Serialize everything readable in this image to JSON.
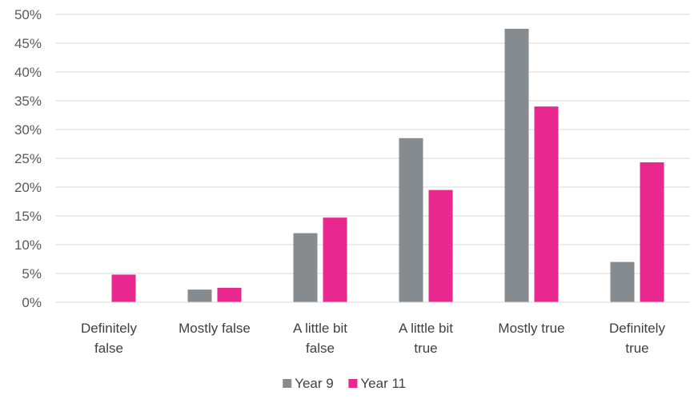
{
  "chart_data": {
    "type": "bar",
    "categories": [
      [
        "Definitely",
        "false"
      ],
      [
        "Mostly false"
      ],
      [
        "A little bit",
        "false"
      ],
      [
        "A little bit",
        "true"
      ],
      [
        "Mostly true"
      ],
      [
        "Definitely",
        "true"
      ]
    ],
    "series": [
      {
        "name": "Year 9",
        "color": "#868b90",
        "values": [
          0,
          2.2,
          12.0,
          28.5,
          47.5,
          7.0
        ]
      },
      {
        "name": "Year 11",
        "color": "#e8278f",
        "values": [
          4.8,
          2.5,
          14.7,
          19.5,
          34.0,
          24.3
        ]
      }
    ],
    "ylim": [
      0,
      50
    ],
    "yticks": [
      "0%",
      "5%",
      "10%",
      "15%",
      "20%",
      "25%",
      "30%",
      "35%",
      "40%",
      "45%",
      "50%"
    ],
    "grid": true,
    "legend_position": "bottom"
  }
}
